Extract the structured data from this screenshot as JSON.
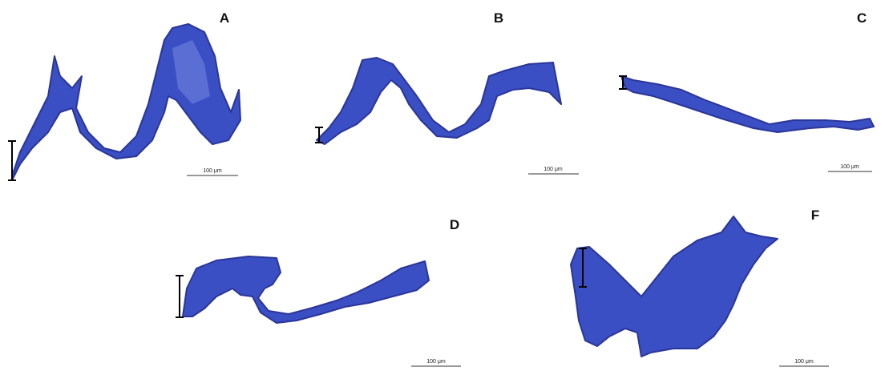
{
  "panels": [
    {
      "label": "A",
      "scale_bar": "100 μm"
    },
    {
      "label": "B",
      "scale_bar": "100 μm"
    },
    {
      "label": "C",
      "scale_bar": "100 μm"
    },
    {
      "label": "D",
      "scale_bar": "100 μm"
    },
    {
      "label": "F",
      "scale_bar": "100 μm"
    }
  ]
}
